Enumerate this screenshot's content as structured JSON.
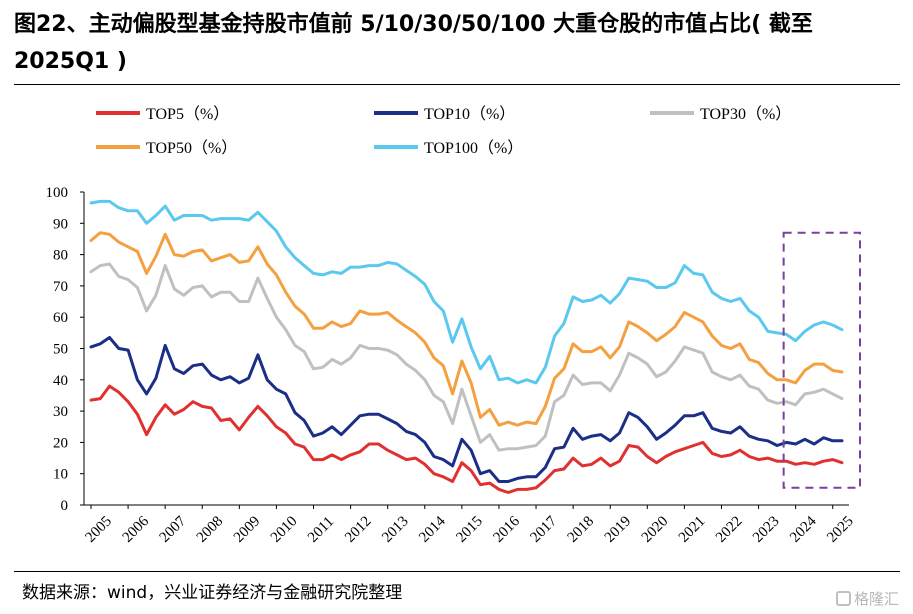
{
  "title": "图22、主动偏股型基金持股市值前 5/10/30/50/100 大重仓股的市值占比( 截至 2025Q1 )",
  "source": "数据来源：wind，兴业证券经济与金融研究院整理",
  "watermark": "格隆汇",
  "chart_data": {
    "type": "line",
    "title": "图22、主动偏股型基金持股市值前 5/10/30/50/100 大重仓股的市值占比( 截至 2025Q1 )",
    "xlabel": "",
    "ylabel": "",
    "ylim": [
      0,
      100
    ],
    "yticks": [
      0,
      10,
      20,
      30,
      40,
      50,
      60,
      70,
      80,
      90,
      100
    ],
    "xticks": [
      "2005",
      "2006",
      "2007",
      "2008",
      "2009",
      "2010",
      "2011",
      "2012",
      "2013",
      "2014",
      "2015",
      "2016",
      "2017",
      "2018",
      "2019",
      "2020",
      "2021",
      "2022",
      "2023",
      "2024",
      "2025"
    ],
    "x_start": "2005Q1",
    "x_end": "2025Q1",
    "x_frequency": "quarterly",
    "grid": false,
    "legend_position": "top",
    "highlight": "dashed purple box around 2024Q4–2025Q1",
    "colors": {
      "TOP5": "#e03030",
      "TOP10": "#1a2f85",
      "TOP30": "#c0c0c0",
      "TOP50": "#f5a040",
      "TOP100": "#5bc8ef",
      "highlight": "#7b3fa0"
    },
    "series": [
      {
        "name": "TOP5（%）",
        "key": "TOP5",
        "values": [
          33.5,
          34,
          38,
          36,
          33,
          29,
          22.5,
          28,
          32,
          29,
          30.5,
          33,
          31.5,
          31,
          27,
          27.5,
          24,
          28,
          31.5,
          28.5,
          25,
          23,
          19.5,
          18.5,
          14.5,
          14.5,
          16,
          14.5,
          16,
          17,
          19.5,
          19.5,
          17.5,
          16,
          14.5,
          15,
          13,
          10,
          9,
          7.5,
          13.5,
          11,
          6.5,
          7,
          5,
          4,
          5,
          5,
          5.5,
          8,
          11,
          11.5,
          15,
          12.5,
          13,
          15,
          12.5,
          14,
          19,
          18.5,
          15.5,
          13.5,
          15.5,
          17,
          18,
          19,
          20,
          16.5,
          15.5,
          16,
          17.5,
          15.5,
          14.5,
          15,
          14,
          14,
          13,
          13.5,
          13,
          14,
          14.5,
          13.5
        ]
      },
      {
        "name": "TOP10（%）",
        "key": "TOP10",
        "values": [
          50.5,
          51.5,
          53.5,
          50,
          49.5,
          40,
          35.5,
          40.5,
          51,
          43.5,
          42,
          44.5,
          45,
          41.5,
          40,
          41,
          39,
          40.5,
          48,
          40,
          37,
          35.5,
          29.5,
          27,
          22,
          23,
          25,
          22.5,
          25.5,
          28.5,
          29,
          29,
          27.5,
          26,
          23.5,
          22.5,
          20,
          15.5,
          14.5,
          12.5,
          21,
          17.5,
          10,
          11,
          7.5,
          7.5,
          8.5,
          9,
          9,
          12,
          18,
          18.5,
          24.5,
          21,
          22,
          22.5,
          20.5,
          23,
          29.5,
          28,
          25,
          21,
          23,
          25.5,
          28.5,
          28.5,
          29.5,
          24.5,
          23.5,
          23,
          25,
          22,
          21,
          20.5,
          19,
          20,
          19.5,
          21,
          19.5,
          21.5,
          20.5,
          20.5
        ]
      },
      {
        "name": "TOP30（%）",
        "key": "TOP30",
        "values": [
          74.5,
          76.5,
          77,
          73,
          72,
          69.5,
          62,
          67,
          76.5,
          69,
          67,
          69.5,
          70,
          66.5,
          68,
          68,
          65,
          65,
          72.5,
          66,
          60,
          56,
          51,
          49,
          43.5,
          44,
          46.5,
          45,
          47,
          51,
          50,
          50,
          49.5,
          48,
          45,
          43,
          40,
          35,
          33,
          26,
          37,
          28.5,
          20,
          22.5,
          17.5,
          18,
          18,
          18.5,
          19,
          22,
          33,
          35,
          41.5,
          38.5,
          39,
          39,
          36.5,
          41.5,
          48.5,
          47,
          45,
          41,
          42.5,
          46,
          50.5,
          49.5,
          48.5,
          42.5,
          41,
          40,
          41.5,
          38,
          37,
          33.5,
          32.5,
          33,
          32,
          35.5,
          36,
          37,
          35.5,
          34
        ]
      },
      {
        "name": "TOP50（%）",
        "key": "TOP50",
        "values": [
          84.5,
          87,
          86.5,
          84,
          82.5,
          81,
          74,
          79.5,
          86.5,
          80,
          79.5,
          81,
          81.5,
          78,
          79,
          80,
          77.5,
          78,
          82.5,
          77,
          73.5,
          68,
          63.5,
          61,
          56.5,
          56.5,
          58.5,
          57,
          58,
          62,
          61,
          61,
          61.5,
          59,
          57,
          55,
          52,
          47,
          44.5,
          35.5,
          46,
          39,
          28,
          30.5,
          25.5,
          26.5,
          25.5,
          26.5,
          26,
          31.5,
          40.5,
          43.5,
          51.5,
          49,
          49,
          50.5,
          47,
          50.5,
          58.5,
          57,
          55,
          52.5,
          54.5,
          57,
          61.5,
          60,
          58.5,
          54,
          51,
          50,
          51.5,
          46.5,
          45.5,
          42,
          40,
          40,
          39,
          43,
          45,
          45,
          43,
          42.5
        ]
      },
      {
        "name": "TOP100（%）",
        "key": "TOP100",
        "values": [
          96.5,
          97,
          97,
          95,
          94,
          94,
          90,
          92.5,
          95.5,
          91,
          92.5,
          92.5,
          92.5,
          91,
          91.5,
          91.5,
          91.5,
          91,
          93.5,
          90.5,
          87.5,
          82.5,
          79,
          76.5,
          74,
          73.5,
          74.5,
          74,
          76,
          76,
          76.5,
          76.5,
          77.5,
          77,
          75,
          73,
          70.5,
          65,
          62,
          52,
          59.5,
          50.5,
          43.5,
          47.5,
          40,
          40.5,
          39,
          40,
          39,
          44,
          54,
          58,
          66.5,
          65,
          65.5,
          67,
          64.5,
          67.5,
          72.5,
          72,
          71.5,
          69.5,
          69.5,
          71,
          76.5,
          74,
          73.5,
          68,
          66,
          65,
          66,
          62,
          60,
          55.5,
          55,
          54.5,
          52.5,
          55.5,
          57.5,
          58.5,
          57.5,
          56
        ]
      }
    ]
  }
}
